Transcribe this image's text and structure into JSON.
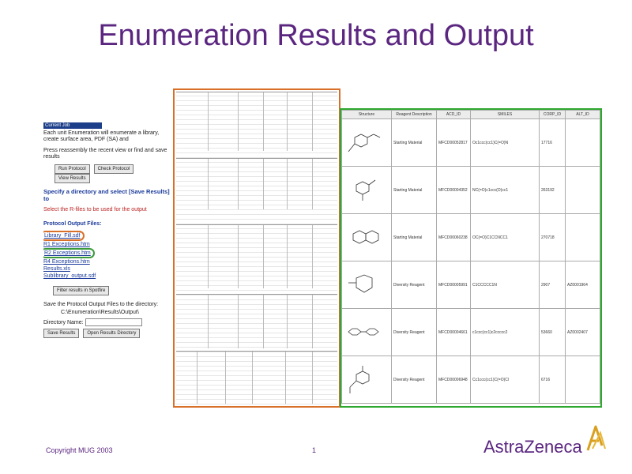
{
  "slide": {
    "title": "Enumeration Results and Output",
    "footer_copyright": "Copyright MUG 2003",
    "page_number": "1",
    "logo_text": "AstraZeneca"
  },
  "brand_colors": {
    "title_purple": "#5b2680",
    "orange_frame": "#d9702a",
    "green_frame": "#2fa82f",
    "link_blue": "#1a3a9a"
  },
  "left_panel": {
    "header": "Current Job",
    "description": "Each unit Enumeration will enumerate a library, create surface area, PDF (SA) and",
    "prompt": "Press reassembly the recent view or find and save results",
    "buttons": {
      "run": "Run Protocol",
      "check": "Check Protocol",
      "view": "View Results"
    },
    "specify_heading": "Specify a directory and select [Save Results] to",
    "specify_note": "Select the R-files to be used for the output",
    "protocol_heading": "Protocol Output Files:",
    "files": [
      "Library_Fill.sdf",
      "R1 Exceptions.htm",
      "R2 Exceptions.htm",
      "R4 Exceptions.htm",
      "Results.xls",
      "Sublibrary_output.sdf"
    ],
    "results_button": "Filter results in Spotfire",
    "save_text": "Save the Protocol Output Files to the directory:",
    "path_value": "C:\\Enumeration\\Results\\Output\\",
    "directory_label": "Directory Name:",
    "save_button": "Save Results",
    "open_button": "Open Results Directory"
  },
  "right_panel": {
    "headers": [
      "Structure",
      "Reagent Description",
      "ACD_ID",
      "SMILES",
      "CORP_ID",
      "ALT_ID"
    ],
    "rows": [
      {
        "desc": "Starting Material",
        "acd": "MFCD00052817",
        "smiles": "Oc1ccc(cc1)C(=O)N",
        "corp": "17716",
        "alt": ""
      },
      {
        "desc": "Starting Material",
        "acd": "MFCD00004352",
        "smiles": "NC(=O)c1ccc(O)cc1",
        "corp": "263192",
        "alt": ""
      },
      {
        "desc": "Starting Material",
        "acd": "MFCD00060238",
        "smiles": "OC(=O)C1CCNCC1",
        "corp": "270718",
        "alt": ""
      },
      {
        "desc": "Diversity Reagent",
        "acd": "MFCD00005991",
        "smiles": "C1CCCCC1N",
        "corp": "2907",
        "alt": "AZ0001964"
      },
      {
        "desc": "Diversity Reagent",
        "acd": "MFCD00004661",
        "smiles": "c1ccc(cc1)c2ccccc2",
        "corp": "53660",
        "alt": "AZ0002407"
      },
      {
        "desc": "Diversity Reagent",
        "acd": "MFCD00006948",
        "smiles": "Cc1ccc(cc1)C(=O)Cl",
        "corp": "6716",
        "alt": ""
      }
    ]
  }
}
